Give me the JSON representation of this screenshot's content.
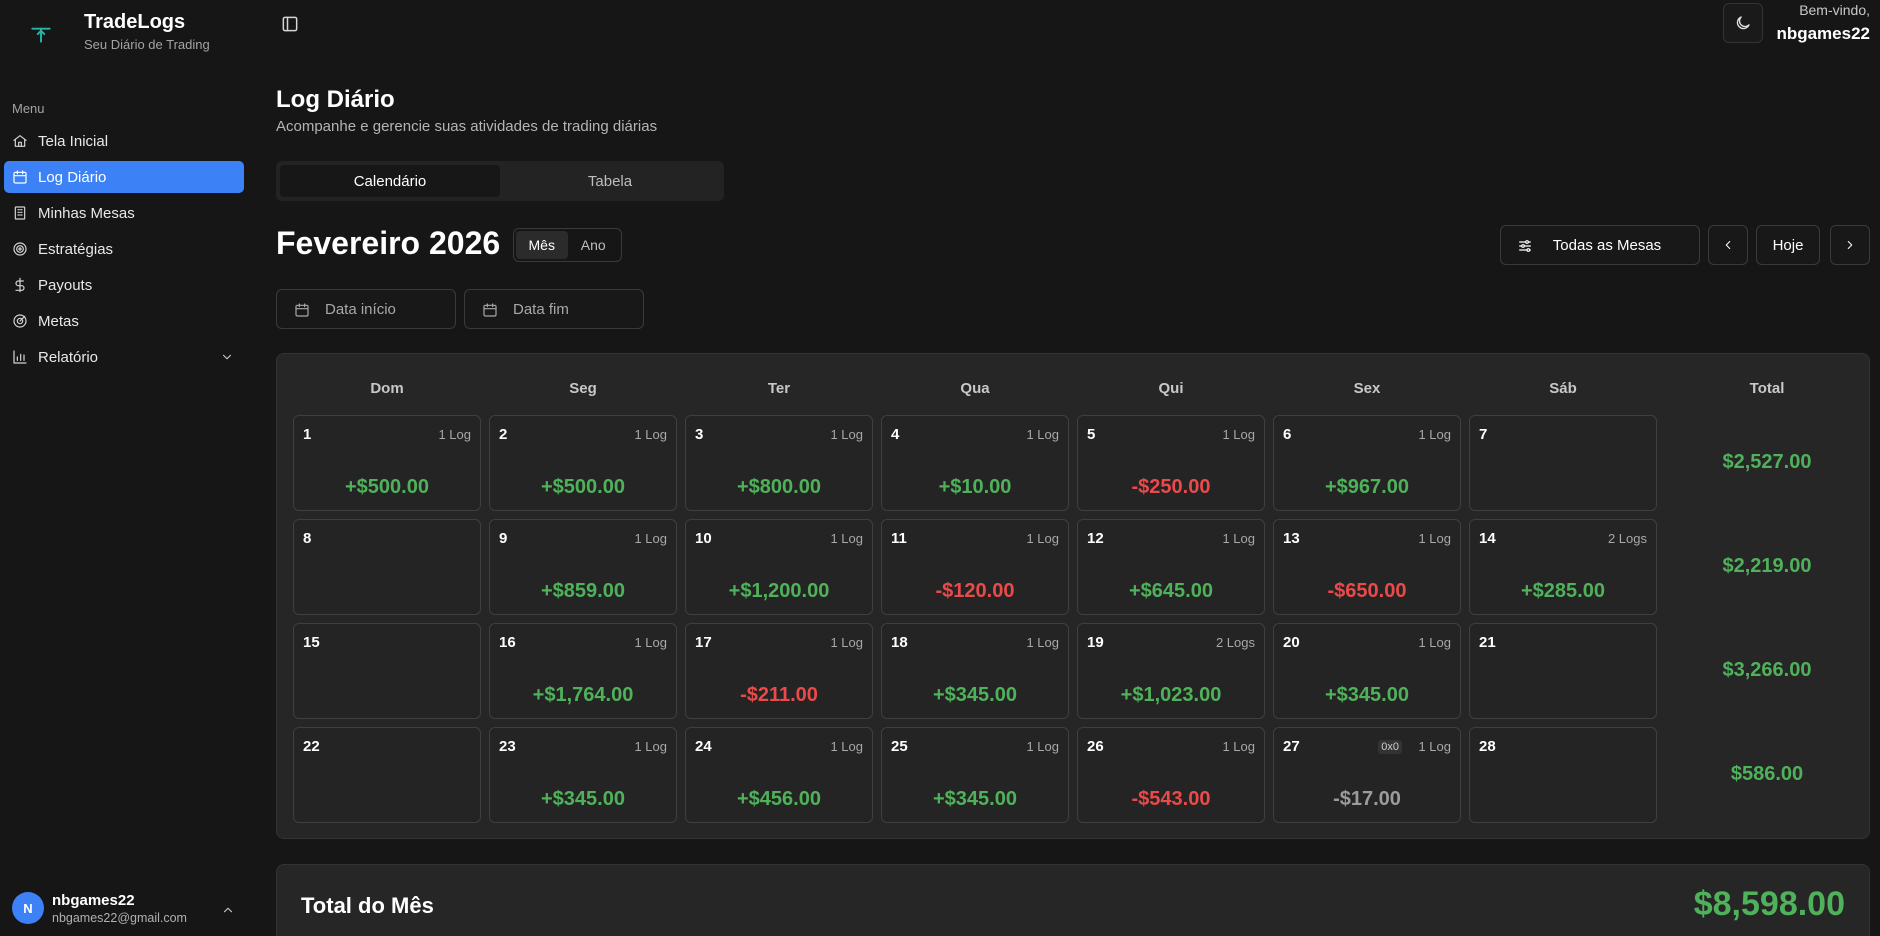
{
  "brand": {
    "name": "TradeLogs",
    "subtitle": "Seu Diário de Trading"
  },
  "sidebar": {
    "menu_label": "Menu",
    "items": [
      {
        "label": "Tela Inicial",
        "icon": "home-icon",
        "active": false
      },
      {
        "label": "Log Diário",
        "icon": "calendar-icon",
        "active": true
      },
      {
        "label": "Minhas Mesas",
        "icon": "building-icon",
        "active": false
      },
      {
        "label": "Estratégias",
        "icon": "target-icon",
        "active": false
      },
      {
        "label": "Payouts",
        "icon": "dollar-icon",
        "active": false
      },
      {
        "label": "Metas",
        "icon": "goal-icon",
        "active": false
      },
      {
        "label": "Relatório",
        "icon": "bar-chart-icon",
        "active": false,
        "expandable": true
      }
    ],
    "user": {
      "initial": "N",
      "name": "nbgames22",
      "email": "nbgames22@gmail.com"
    }
  },
  "header": {
    "welcome": "Bem-vindo,",
    "username": "nbgames22"
  },
  "page": {
    "title": "Log Diário",
    "subtitle": "Acompanhe e gerencie suas atividades de trading diárias"
  },
  "tabs": [
    {
      "label": "Calendário",
      "active": true
    },
    {
      "label": "Tabela",
      "active": false
    }
  ],
  "calendar": {
    "month_title": "Fevereiro 2026",
    "period_options": [
      {
        "label": "Mês",
        "active": true
      },
      {
        "label": "Ano",
        "active": false
      }
    ],
    "filter_label": "Todas as Mesas",
    "today_label": "Hoje",
    "start_date_placeholder": "Data início",
    "end_date_placeholder": "Data fim",
    "weekdays": [
      "Dom",
      "Seg",
      "Ter",
      "Qua",
      "Qui",
      "Sex",
      "Sáb"
    ],
    "total_header": "Total",
    "weeks": [
      {
        "days": [
          {
            "day": "1",
            "logs": "1 Log",
            "pnl": "+$500.00",
            "type": "pos"
          },
          {
            "day": "2",
            "logs": "1 Log",
            "pnl": "+$500.00",
            "type": "pos"
          },
          {
            "day": "3",
            "logs": "1 Log",
            "pnl": "+$800.00",
            "type": "pos"
          },
          {
            "day": "4",
            "logs": "1 Log",
            "pnl": "+$10.00",
            "type": "pos"
          },
          {
            "day": "5",
            "logs": "1 Log",
            "pnl": "-$250.00",
            "type": "neg"
          },
          {
            "day": "6",
            "logs": "1 Log",
            "pnl": "+$967.00",
            "type": "pos"
          },
          {
            "day": "7",
            "logs": "",
            "pnl": "",
            "type": ""
          }
        ],
        "total": "$2,527.00"
      },
      {
        "days": [
          {
            "day": "8",
            "logs": "",
            "pnl": "",
            "type": ""
          },
          {
            "day": "9",
            "logs": "1 Log",
            "pnl": "+$859.00",
            "type": "pos"
          },
          {
            "day": "10",
            "logs": "1 Log",
            "pnl": "+$1,200.00",
            "type": "pos"
          },
          {
            "day": "11",
            "logs": "1 Log",
            "pnl": "-$120.00",
            "type": "neg"
          },
          {
            "day": "12",
            "logs": "1 Log",
            "pnl": "+$645.00",
            "type": "pos"
          },
          {
            "day": "13",
            "logs": "1 Log",
            "pnl": "-$650.00",
            "type": "neg"
          },
          {
            "day": "14",
            "logs": "2 Logs",
            "pnl": "+$285.00",
            "type": "pos"
          }
        ],
        "total": "$2,219.00"
      },
      {
        "days": [
          {
            "day": "15",
            "logs": "",
            "pnl": "",
            "type": ""
          },
          {
            "day": "16",
            "logs": "1 Log",
            "pnl": "+$1,764.00",
            "type": "pos"
          },
          {
            "day": "17",
            "logs": "1 Log",
            "pnl": "-$211.00",
            "type": "neg"
          },
          {
            "day": "18",
            "logs": "1 Log",
            "pnl": "+$345.00",
            "type": "pos"
          },
          {
            "day": "19",
            "logs": "2 Logs",
            "pnl": "+$1,023.00",
            "type": "pos"
          },
          {
            "day": "20",
            "logs": "1 Log",
            "pnl": "+$345.00",
            "type": "pos"
          },
          {
            "day": "21",
            "logs": "",
            "pnl": "",
            "type": ""
          }
        ],
        "total": "$3,266.00"
      },
      {
        "days": [
          {
            "day": "22",
            "logs": "",
            "pnl": "",
            "type": ""
          },
          {
            "day": "23",
            "logs": "1 Log",
            "pnl": "+$345.00",
            "type": "pos"
          },
          {
            "day": "24",
            "logs": "1 Log",
            "pnl": "+$456.00",
            "type": "pos"
          },
          {
            "day": "25",
            "logs": "1 Log",
            "pnl": "+$345.00",
            "type": "pos"
          },
          {
            "day": "26",
            "logs": "1 Log",
            "pnl": "-$543.00",
            "type": "neg"
          },
          {
            "day": "27",
            "logs": "1 Log",
            "tag": "0x0",
            "pnl": "-$17.00",
            "type": "neu"
          },
          {
            "day": "28",
            "logs": "",
            "pnl": "",
            "type": ""
          }
        ],
        "total": "$586.00"
      }
    ],
    "month_total_label": "Total do Mês",
    "month_total_value": "$8,598.00"
  },
  "colors": {
    "accent": "#3c82f6",
    "positive": "#4fb25a",
    "negative": "#ea4a4a",
    "neutral": "#9b9b9b",
    "brand_logo": "#22b7a6"
  }
}
